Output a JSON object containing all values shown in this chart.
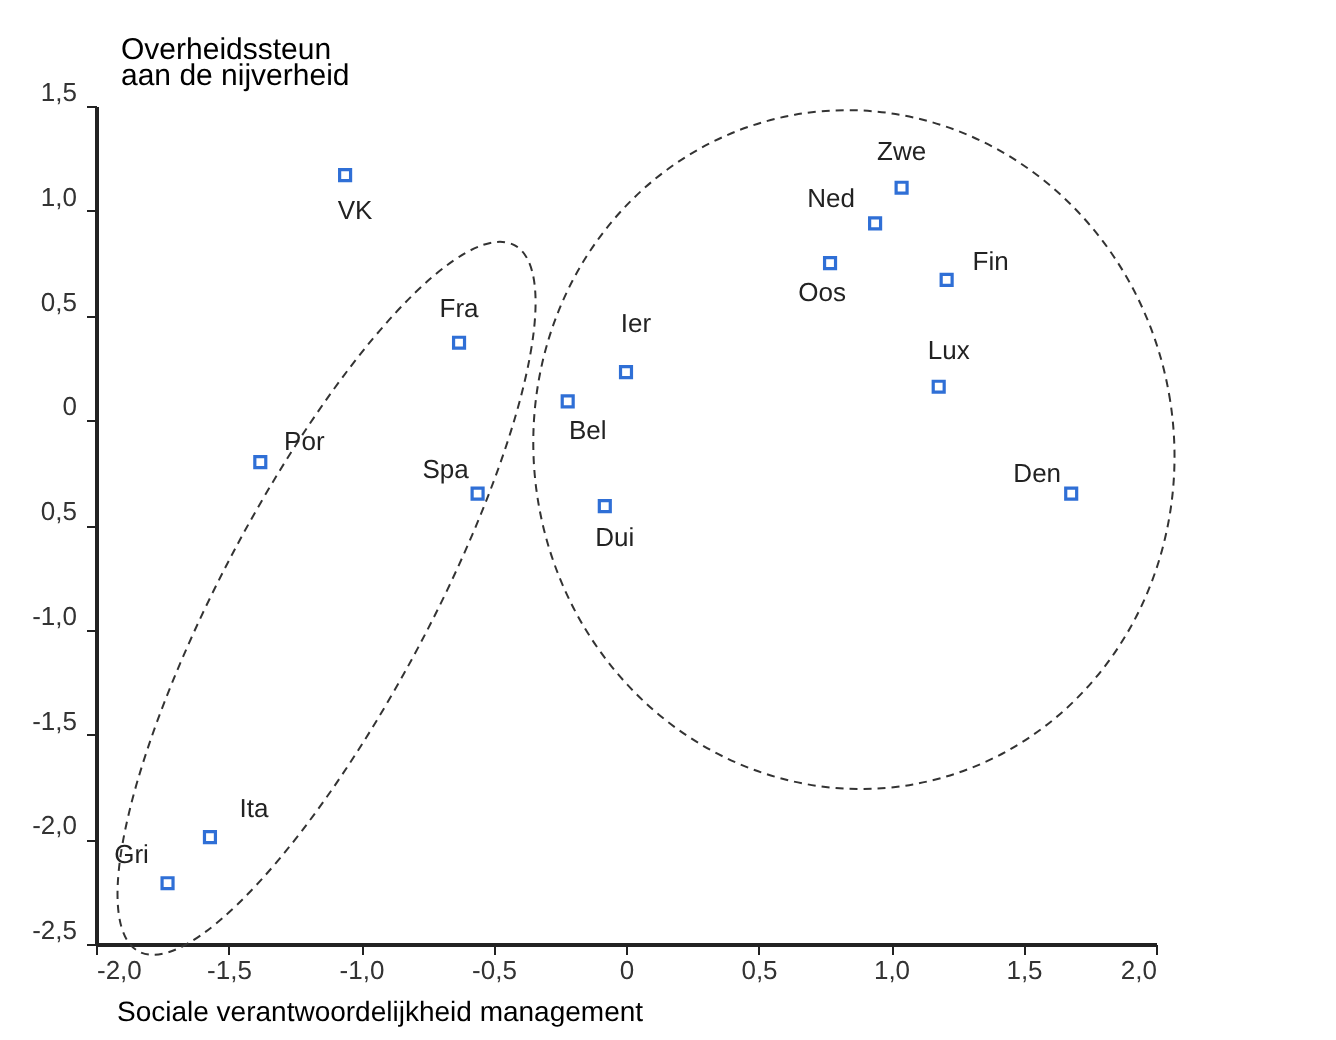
{
  "chart_data": {
    "type": "scatter",
    "xlabel": "Sociale verantwoordelijkheid management",
    "ylabel": "Overheidssteun aan de nijverheid",
    "x": [
      -1.06,
      -0.63,
      -1.38,
      -0.56,
      -1.57,
      -1.73,
      0.0,
      -0.22,
      -0.08,
      0.77,
      0.94,
      1.04,
      1.21,
      1.18,
      1.68
    ],
    "series": [
      {
        "color": "#2f6fd6",
        "values": [
          1.17,
          0.37,
          -0.2,
          -0.35,
          -1.99,
          -2.21,
          0.23,
          0.09,
          -0.41,
          0.75,
          0.94,
          1.11,
          0.67,
          0.16,
          -0.35
        ]
      }
    ],
    "annotations": [
      {
        "text": "VK",
        "x": -1.06,
        "y": 1.17
      },
      {
        "text": "Fra",
        "x": -0.63,
        "y": 0.37
      },
      {
        "text": "Por",
        "x": -1.38,
        "y": -0.2
      },
      {
        "text": "Spa",
        "x": -0.56,
        "y": -0.35
      },
      {
        "text": "Ita",
        "x": -1.57,
        "y": -1.99
      },
      {
        "text": "Gri",
        "x": -1.73,
        "y": -2.21
      },
      {
        "text": "Ier",
        "x": 0.0,
        "y": 0.23
      },
      {
        "text": "Bel",
        "x": -0.22,
        "y": 0.09
      },
      {
        "text": "Dui",
        "x": -0.08,
        "y": -0.41
      },
      {
        "text": "Oos",
        "x": 0.77,
        "y": 0.75
      },
      {
        "text": "Ned",
        "x": 0.94,
        "y": 0.94
      },
      {
        "text": "Zwe",
        "x": 1.04,
        "y": 1.11
      },
      {
        "text": "Fin",
        "x": 1.21,
        "y": 0.67
      },
      {
        "text": "Lux",
        "x": 1.18,
        "y": 0.16
      },
      {
        "text": "Den",
        "x": 1.68,
        "y": -0.35
      }
    ],
    "xlim": [
      -2,
      2
    ],
    "ylim": [
      -2.5,
      1.5
    ],
    "xticks": [
      {
        "value": -2,
        "label": "-2,0"
      },
      {
        "value": -1.5,
        "label": "-1,5"
      },
      {
        "value": -1,
        "label": "-1,0"
      },
      {
        "value": -0.5,
        "label": "-0,5"
      },
      0,
      {
        "value": 0.5,
        "label": "0,5"
      },
      {
        "value": 1,
        "label": "1,0"
      },
      {
        "value": 1.5,
        "label": "1,5"
      },
      {
        "value": 2,
        "label": "2,0"
      }
    ],
    "yticks": [
      {
        "value": 1.5,
        "label": "1,5"
      },
      {
        "value": 1,
        "label": "1,0"
      },
      {
        "value": 0.5,
        "label": "0,5"
      },
      0,
      {
        "value": -0.5,
        "label": "0,5"
      },
      {
        "value": -1,
        "label": "-1,0"
      },
      {
        "value": -1.5,
        "label": "-1,5"
      },
      {
        "value": -2,
        "label": "-2,0"
      },
      {
        "value": -2.5,
        "label": "-2,5"
      }
    ],
    "marker": "square",
    "grid": false,
    "legend": false
  }
}
